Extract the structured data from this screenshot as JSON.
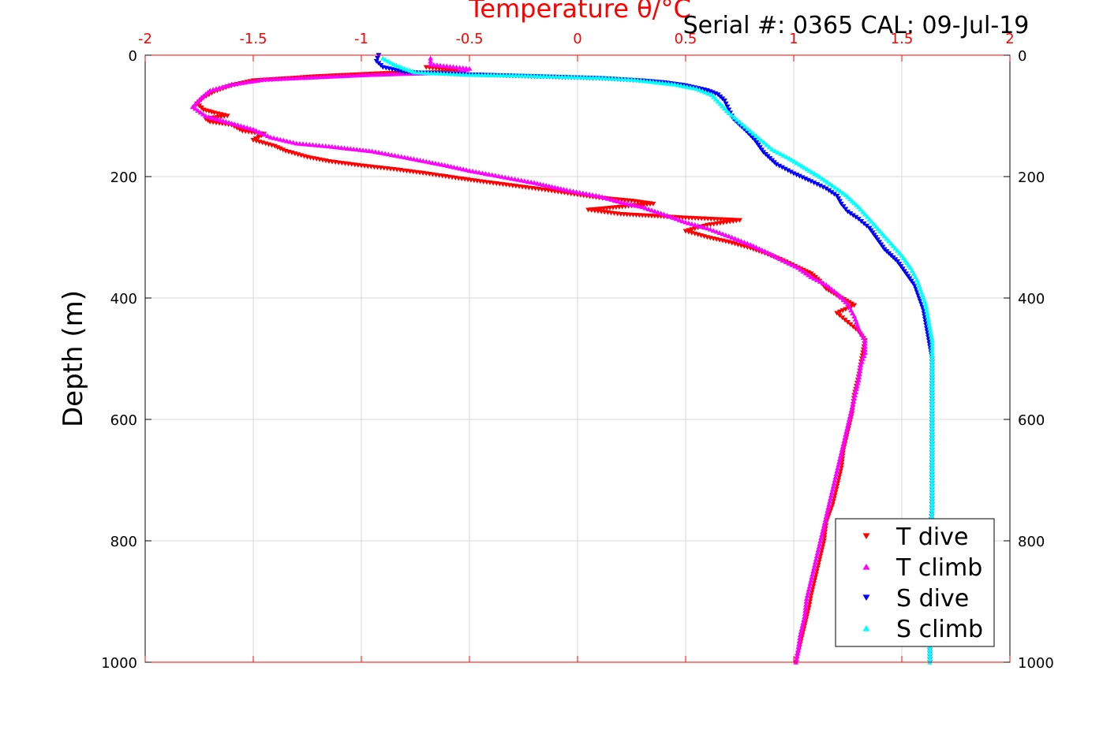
{
  "chart_data": {
    "type": "scatter",
    "title": "Temperature θ/°C",
    "serial_label": "Serial #: 0365  CAL: 09-Jul-19",
    "xlabel": "Temperature θ/°C",
    "ylabel": "Depth (m)",
    "xlim": [
      -2,
      2
    ],
    "ylim": [
      0,
      1000
    ],
    "y_reversed": true,
    "grid": true,
    "legend_position": "bottom-right",
    "x_ticks": [
      "-2",
      "-1.5",
      "-1",
      "-0.5",
      "0",
      "0.5",
      "1",
      "1.5",
      "2"
    ],
    "x_tick_values": [
      -2,
      -1.5,
      -1,
      -0.5,
      0,
      0.5,
      1,
      1.5,
      2
    ],
    "y_ticks": [
      "0",
      "200",
      "400",
      "600",
      "800",
      "1000"
    ],
    "y_tick_values": [
      0,
      200,
      400,
      600,
      800,
      1000
    ],
    "colors": {
      "axis_top": "#ff0000",
      "axis": "#000000",
      "grid": "#d9d9d9"
    },
    "series": [
      {
        "name": "T dive",
        "color": "#ff0000",
        "marker": "triangle-down",
        "points": [
          [
            -0.7,
            20
          ],
          [
            -0.58,
            25
          ],
          [
            -0.55,
            28
          ],
          [
            -0.9,
            30
          ],
          [
            -1.2,
            35
          ],
          [
            -1.5,
            42
          ],
          [
            -1.6,
            50
          ],
          [
            -1.68,
            60
          ],
          [
            -1.73,
            70
          ],
          [
            -1.76,
            80
          ],
          [
            -1.73,
            90
          ],
          [
            -1.68,
            95
          ],
          [
            -1.62,
            100
          ],
          [
            -1.72,
            105
          ],
          [
            -1.7,
            110
          ],
          [
            -1.6,
            115
          ],
          [
            -1.55,
            125
          ],
          [
            -1.45,
            130
          ],
          [
            -1.5,
            140
          ],
          [
            -1.4,
            150
          ],
          [
            -1.35,
            158
          ],
          [
            -1.25,
            168
          ],
          [
            -1.15,
            175
          ],
          [
            -1.0,
            182
          ],
          [
            -0.85,
            188
          ],
          [
            -0.7,
            195
          ],
          [
            -0.55,
            203
          ],
          [
            -0.45,
            208
          ],
          [
            -0.3,
            215
          ],
          [
            -0.15,
            222
          ],
          [
            0.0,
            230
          ],
          [
            0.1,
            235
          ],
          [
            0.25,
            240
          ],
          [
            0.35,
            245
          ],
          [
            0.05,
            255
          ],
          [
            0.2,
            262
          ],
          [
            0.5,
            268
          ],
          [
            0.75,
            272
          ],
          [
            0.6,
            280
          ],
          [
            0.5,
            290
          ],
          [
            0.6,
            300
          ],
          [
            0.7,
            308
          ],
          [
            0.8,
            318
          ],
          [
            0.88,
            328
          ],
          [
            0.95,
            338
          ],
          [
            1.02,
            350
          ],
          [
            1.08,
            360
          ],
          [
            1.12,
            372
          ],
          [
            1.15,
            385
          ],
          [
            1.22,
            400
          ],
          [
            1.28,
            412
          ],
          [
            1.2,
            425
          ],
          [
            1.25,
            440
          ],
          [
            1.3,
            455
          ],
          [
            1.33,
            470
          ],
          [
            1.32,
            490
          ],
          [
            1.31,
            510
          ],
          [
            1.3,
            530
          ],
          [
            1.28,
            560
          ],
          [
            1.27,
            590
          ],
          [
            1.25,
            620
          ],
          [
            1.23,
            650
          ],
          [
            1.22,
            680
          ],
          [
            1.2,
            710
          ],
          [
            1.18,
            740
          ],
          [
            1.15,
            770
          ],
          [
            1.14,
            800
          ],
          [
            1.12,
            830
          ],
          [
            1.1,
            860
          ],
          [
            1.08,
            890
          ],
          [
            1.07,
            910
          ],
          [
            1.05,
            940
          ],
          [
            1.03,
            970
          ],
          [
            1.01,
            1000
          ]
        ]
      },
      {
        "name": "T climb",
        "color": "#ff00ff",
        "marker": "triangle-up",
        "points": [
          [
            -0.68,
            5
          ],
          [
            -0.68,
            15
          ],
          [
            -0.5,
            22
          ],
          [
            -0.55,
            28
          ],
          [
            -0.95,
            32
          ],
          [
            -1.2,
            36
          ],
          [
            -1.45,
            40
          ],
          [
            -1.6,
            48
          ],
          [
            -1.7,
            58
          ],
          [
            -1.74,
            70
          ],
          [
            -1.78,
            85
          ],
          [
            -1.72,
            100
          ],
          [
            -1.6,
            112
          ],
          [
            -1.5,
            122
          ],
          [
            -1.42,
            135
          ],
          [
            -1.3,
            145
          ],
          [
            -1.15,
            150
          ],
          [
            -0.95,
            158
          ],
          [
            -0.8,
            168
          ],
          [
            -0.6,
            182
          ],
          [
            -0.5,
            190
          ],
          [
            -0.35,
            200
          ],
          [
            -0.2,
            210
          ],
          [
            -0.05,
            222
          ],
          [
            0.1,
            232
          ],
          [
            0.2,
            242
          ],
          [
            0.3,
            250
          ],
          [
            0.4,
            262
          ],
          [
            0.5,
            275
          ],
          [
            0.6,
            285
          ],
          [
            0.7,
            298
          ],
          [
            0.8,
            312
          ],
          [
            0.88,
            325
          ],
          [
            0.95,
            338
          ],
          [
            1.02,
            350
          ],
          [
            1.08,
            365
          ],
          [
            1.15,
            378
          ],
          [
            1.2,
            392
          ],
          [
            1.25,
            410
          ],
          [
            1.28,
            430
          ],
          [
            1.3,
            450
          ],
          [
            1.33,
            470
          ],
          [
            1.33,
            490
          ],
          [
            1.31,
            510
          ],
          [
            1.3,
            535
          ],
          [
            1.28,
            565
          ],
          [
            1.26,
            595
          ],
          [
            1.24,
            625
          ],
          [
            1.22,
            655
          ],
          [
            1.2,
            685
          ],
          [
            1.18,
            715
          ],
          [
            1.16,
            745
          ],
          [
            1.14,
            775
          ],
          [
            1.12,
            805
          ],
          [
            1.1,
            835
          ],
          [
            1.08,
            865
          ],
          [
            1.06,
            895
          ],
          [
            1.05,
            925
          ],
          [
            1.03,
            955
          ],
          [
            1.02,
            980
          ],
          [
            1.01,
            1000
          ]
        ]
      },
      {
        "name": "S dive",
        "color": "#0000ff",
        "marker": "triangle-down",
        "points": [
          [
            -0.92,
            0
          ],
          [
            -0.93,
            10
          ],
          [
            -0.9,
            20
          ],
          [
            -0.8,
            28
          ],
          [
            -0.5,
            32
          ],
          [
            -0.3,
            34
          ],
          [
            -0.1,
            36
          ],
          [
            0.1,
            38
          ],
          [
            0.3,
            42
          ],
          [
            0.4,
            45
          ],
          [
            0.5,
            50
          ],
          [
            0.6,
            58
          ],
          [
            0.65,
            65
          ],
          [
            0.68,
            75
          ],
          [
            0.7,
            90
          ],
          [
            0.72,
            105
          ],
          [
            0.78,
            125
          ],
          [
            0.82,
            140
          ],
          [
            0.86,
            160
          ],
          [
            0.92,
            180
          ],
          [
            1.0,
            195
          ],
          [
            1.08,
            208
          ],
          [
            1.15,
            220
          ],
          [
            1.2,
            232
          ],
          [
            1.22,
            245
          ],
          [
            1.25,
            258
          ],
          [
            1.3,
            270
          ],
          [
            1.35,
            285
          ],
          [
            1.38,
            300
          ],
          [
            1.42,
            320
          ],
          [
            1.48,
            340
          ],
          [
            1.52,
            360
          ],
          [
            1.56,
            380
          ],
          [
            1.58,
            400
          ],
          [
            1.6,
            420
          ],
          [
            1.61,
            440
          ],
          [
            1.62,
            460
          ],
          [
            1.63,
            480
          ],
          [
            1.64,
            500
          ],
          [
            1.64,
            550
          ],
          [
            1.64,
            600
          ],
          [
            1.64,
            650
          ],
          [
            1.64,
            700
          ],
          [
            1.64,
            750
          ],
          [
            1.63,
            800
          ],
          [
            1.63,
            850
          ],
          [
            1.63,
            900
          ],
          [
            1.63,
            950
          ],
          [
            1.63,
            1000
          ]
        ]
      },
      {
        "name": "S climb",
        "color": "#00ffff",
        "marker": "triangle-up",
        "points": [
          [
            -0.9,
            5
          ],
          [
            -0.85,
            15
          ],
          [
            -0.8,
            22
          ],
          [
            -0.75,
            28
          ],
          [
            -0.5,
            32
          ],
          [
            -0.3,
            33
          ],
          [
            -0.1,
            35
          ],
          [
            0.1,
            37
          ],
          [
            0.25,
            40
          ],
          [
            0.35,
            44
          ],
          [
            0.45,
            48
          ],
          [
            0.55,
            55
          ],
          [
            0.62,
            65
          ],
          [
            0.66,
            80
          ],
          [
            0.7,
            95
          ],
          [
            0.75,
            110
          ],
          [
            0.8,
            125
          ],
          [
            0.85,
            140
          ],
          [
            0.9,
            155
          ],
          [
            0.98,
            170
          ],
          [
            1.05,
            185
          ],
          [
            1.12,
            200
          ],
          [
            1.18,
            215
          ],
          [
            1.24,
            230
          ],
          [
            1.3,
            250
          ],
          [
            1.35,
            270
          ],
          [
            1.4,
            290
          ],
          [
            1.45,
            310
          ],
          [
            1.5,
            330
          ],
          [
            1.54,
            350
          ],
          [
            1.57,
            370
          ],
          [
            1.59,
            390
          ],
          [
            1.61,
            410
          ],
          [
            1.62,
            430
          ],
          [
            1.63,
            450
          ],
          [
            1.64,
            470
          ],
          [
            1.64,
            500
          ],
          [
            1.64,
            550
          ],
          [
            1.64,
            600
          ],
          [
            1.64,
            650
          ],
          [
            1.64,
            700
          ],
          [
            1.64,
            750
          ],
          [
            1.63,
            800
          ],
          [
            1.63,
            850
          ],
          [
            1.63,
            900
          ],
          [
            1.63,
            950
          ],
          [
            1.63,
            1000
          ]
        ]
      }
    ]
  }
}
